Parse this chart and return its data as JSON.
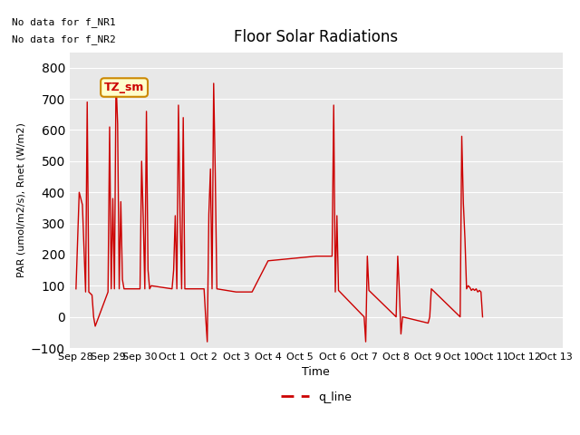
{
  "title": "Floor Solar Radiations",
  "xlabel": "Time",
  "ylabel": "PAR (umol/m2/s), Rnet (W/m2)",
  "ylim": [
    -100,
    850
  ],
  "yticks": [
    -100,
    0,
    100,
    200,
    300,
    400,
    500,
    600,
    700,
    800
  ],
  "no_data_texts": [
    "No data for f_NR1",
    "No data for f_NR2"
  ],
  "legend_label": "q_line",
  "legend_color": "#cc0000",
  "line_color": "#cc0000",
  "box_label": "TZ_sm",
  "box_facecolor": "#ffffcc",
  "box_edgecolor": "#cc8800",
  "background_color": "#e8e8e8",
  "xtick_labels": [
    "Sep 28",
    "Sep 29",
    "Sep 30",
    "Oct 1",
    "Oct 2",
    "Oct 3",
    "Oct 4",
    "Oct 5",
    "Oct 6",
    "Oct 7",
    "Oct 8",
    "Oct 9",
    "Oct 10",
    "Oct 11",
    "Oct 12",
    "Oct 13"
  ],
  "x_data": [
    0,
    0.1,
    0.2,
    0.3,
    0.35,
    0.4,
    0.5,
    0.55,
    0.6,
    1.0,
    1.05,
    1.1,
    1.15,
    1.2,
    1.25,
    1.3,
    1.35,
    1.4,
    1.45,
    1.5,
    2.0,
    2.05,
    2.1,
    2.15,
    2.2,
    2.25,
    2.3,
    2.35,
    3.0,
    3.05,
    3.1,
    3.15,
    3.2,
    3.25,
    3.3,
    3.35,
    3.4,
    4.0,
    4.05,
    4.1,
    4.15,
    4.2,
    4.25,
    4.3,
    4.35,
    4.4,
    5.0,
    5.05,
    5.5,
    5.6,
    5.7,
    5.8,
    5.9,
    6.0,
    6.5,
    7.0,
    7.5,
    8.0,
    8.05,
    8.1,
    8.15,
    8.2,
    9.0,
    9.05,
    9.1,
    9.15,
    10.0,
    10.05,
    10.1,
    10.15,
    10.2,
    11.0,
    11.05,
    11.1,
    11.15,
    12.0,
    12.05,
    12.1,
    12.15,
    12.2,
    12.25,
    12.3,
    12.35,
    12.4,
    12.45,
    12.5,
    12.55,
    12.6,
    12.65,
    12.7
  ],
  "y_data": [
    90,
    400,
    360,
    80,
    690,
    80,
    70,
    0,
    -30,
    80,
    610,
    90,
    380,
    90,
    760,
    620,
    90,
    370,
    120,
    90,
    90,
    500,
    320,
    90,
    660,
    150,
    90,
    100,
    90,
    150,
    325,
    90,
    680,
    325,
    90,
    640,
    90,
    90,
    0,
    -80,
    330,
    475,
    90,
    750,
    460,
    90,
    80,
    80,
    80,
    100,
    120,
    140,
    160,
    180,
    185,
    190,
    195,
    195,
    680,
    80,
    325,
    85,
    0,
    -80,
    195,
    85,
    0,
    195,
    85,
    -55,
    0,
    -20,
    0,
    90,
    85,
    0,
    580,
    365,
    250,
    90,
    100,
    95,
    85,
    90,
    85,
    90,
    80,
    85,
    80,
    0
  ],
  "figsize": [
    6.4,
    4.8
  ],
  "dpi": 100
}
